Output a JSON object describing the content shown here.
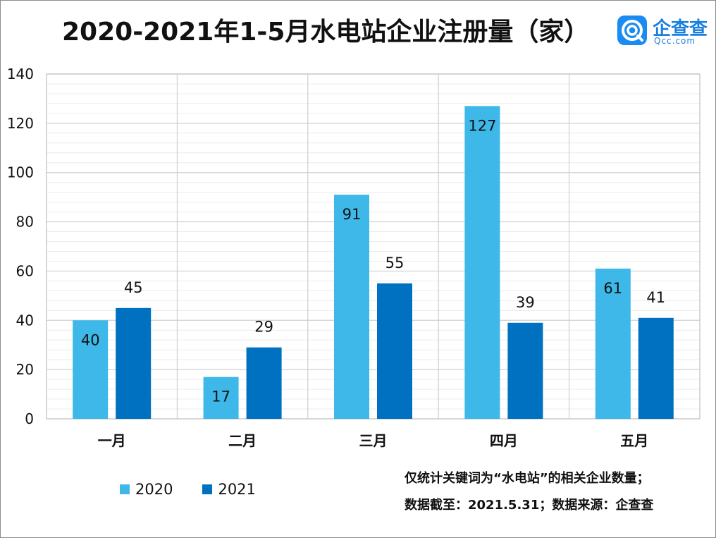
{
  "title": "2020-2021年1-5月水电站企业注册量（家）",
  "logo": {
    "name": "企查查",
    "sub": "Qcc.com"
  },
  "colors": {
    "s2020": "#3db8e8",
    "s2021": "#0070c0",
    "grid": "#d9d9d9",
    "border": "#bfbfbf"
  },
  "notes": [
    "仅统计关键词为“水电站”的相关企业数量；",
    "数据截至：2021.5.31；数据来源：企查查"
  ],
  "chart_data": {
    "type": "bar",
    "title": "2020-2021年1-5月水电站企业注册量（家）",
    "categories": [
      "一月",
      "二月",
      "三月",
      "四月",
      "五月"
    ],
    "series": [
      {
        "name": "2020",
        "values": [
          40,
          17,
          91,
          127,
          61
        ]
      },
      {
        "name": "2021",
        "values": [
          45,
          29,
          55,
          39,
          41
        ]
      }
    ],
    "ylim": [
      0,
      140
    ],
    "yticks": [
      0,
      20,
      40,
      60,
      80,
      100,
      120,
      140
    ],
    "grid": true,
    "legend": "bottom-left"
  }
}
